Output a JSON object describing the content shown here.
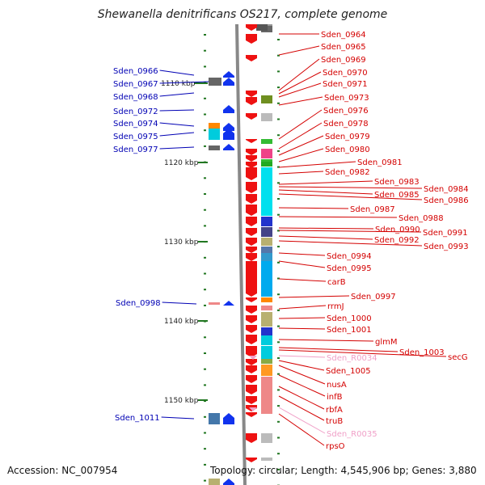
{
  "title": "Shewanella denitrificans OS217, complete genome",
  "footer": {
    "accession": "Accession: NC_007954",
    "summary": "Topology: circular; Length: 4,545,906 bp; Genes: 3,880"
  },
  "colors": {
    "forward_label": "#d40000",
    "reverse_label": "#0000b4",
    "rna_label": "#f0a0c8",
    "forward_arrow": "#ee1111",
    "reverse_arrow": "#1133ee",
    "axis": "#888888",
    "tick": "#227722"
  },
  "scale_labels": [
    {
      "text": "1110 kbp",
      "kbp": 1110
    },
    {
      "text": "1120 kbp",
      "kbp": 1120
    },
    {
      "text": "1130 kbp",
      "kbp": 1130
    },
    {
      "text": "1140 kbp",
      "kbp": 1140
    },
    {
      "text": "1150 kbp",
      "kbp": 1150
    }
  ],
  "genes_reverse": [
    {
      "label": "Sden_0966",
      "color": "#666666"
    },
    {
      "label": "Sden_0967",
      "color": "#666666"
    },
    {
      "label": "Sden_0968",
      "color": "#666666"
    },
    {
      "label": "Sden_0972",
      "color": "#2244dd"
    },
    {
      "label": "Sden_0974",
      "color": "#ff8800"
    },
    {
      "label": "Sden_0975",
      "color": "#00ccdd"
    },
    {
      "label": "Sden_0977",
      "color": "#666666"
    },
    {
      "label": "Sden_0998",
      "color": "#ee8888"
    },
    {
      "label": "Sden_1011",
      "color": "#4477aa"
    }
  ],
  "genes_forward": [
    {
      "label": "Sden_0964",
      "type": "gene"
    },
    {
      "label": "Sden_0965",
      "type": "gene"
    },
    {
      "label": "Sden_0969",
      "type": "gene"
    },
    {
      "label": "Sden_0970",
      "type": "gene"
    },
    {
      "label": "Sden_0971",
      "type": "gene"
    },
    {
      "label": "Sden_0973",
      "type": "gene"
    },
    {
      "label": "Sden_0976",
      "type": "gene"
    },
    {
      "label": "Sden_0978",
      "type": "gene"
    },
    {
      "label": "Sden_0979",
      "type": "gene"
    },
    {
      "label": "Sden_0980",
      "type": "gene"
    },
    {
      "label": "Sden_0981",
      "type": "gene"
    },
    {
      "label": "Sden_0982",
      "type": "gene"
    },
    {
      "label": "Sden_0983",
      "type": "gene"
    },
    {
      "label": "Sden_0984",
      "type": "gene"
    },
    {
      "label": "Sden_0985",
      "type": "gene"
    },
    {
      "label": "Sden_0986",
      "type": "gene"
    },
    {
      "label": "Sden_0987",
      "type": "gene"
    },
    {
      "label": "Sden_0988",
      "type": "gene"
    },
    {
      "label": "Sden_0990",
      "type": "gene"
    },
    {
      "label": "Sden_0991",
      "type": "gene"
    },
    {
      "label": "Sden_0992",
      "type": "gene"
    },
    {
      "label": "Sden_0993",
      "type": "gene"
    },
    {
      "label": "Sden_0994",
      "type": "gene"
    },
    {
      "label": "Sden_0995",
      "type": "gene"
    },
    {
      "label": "carB",
      "type": "gene"
    },
    {
      "label": "Sden_0997",
      "type": "gene"
    },
    {
      "label": "rrmJ",
      "type": "gene"
    },
    {
      "label": "Sden_1000",
      "type": "gene"
    },
    {
      "label": "Sden_1001",
      "type": "gene"
    },
    {
      "label": "glmM",
      "type": "gene"
    },
    {
      "label": "Sden_1003",
      "type": "gene"
    },
    {
      "label": "secG",
      "type": "gene"
    },
    {
      "label": "Sden_R0034",
      "type": "rna"
    },
    {
      "label": "Sden_1005",
      "type": "gene"
    },
    {
      "label": "nusA",
      "type": "gene"
    },
    {
      "label": "infB",
      "type": "gene"
    },
    {
      "label": "rbfA",
      "type": "gene"
    },
    {
      "label": "truB",
      "type": "gene"
    },
    {
      "label": "Sden_R0035",
      "type": "rna"
    },
    {
      "label": "rpsO",
      "type": "gene"
    }
  ]
}
